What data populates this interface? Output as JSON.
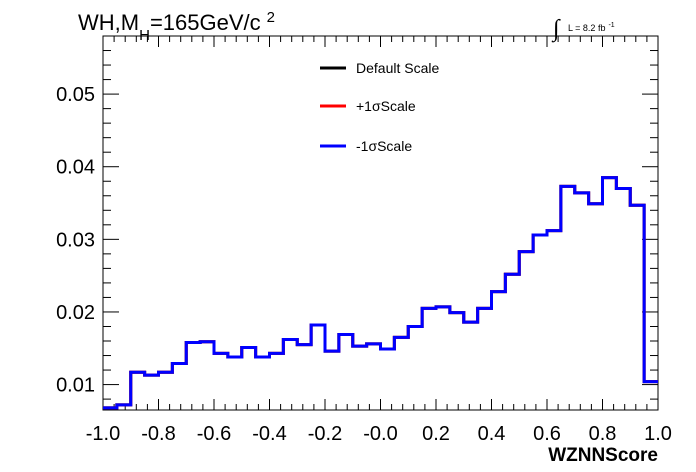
{
  "chart_data": {
    "type": "line",
    "title_main": "WH,M",
    "title_sub": "H",
    "title_rest": "=165GeV/c",
    "title_sup": "2",
    "luminosity_symbol": "∫",
    "luminosity_text": "L = 8.2 fb",
    "luminosity_sup": "-1",
    "xlabel": "WZNNScore",
    "ylabel": "",
    "xlim": [
      -1.0,
      1.0
    ],
    "ylim": [
      0.0065,
      0.058
    ],
    "xticks": [
      -1.0,
      -0.8,
      -0.6,
      -0.4,
      -0.2,
      0.0,
      0.2,
      0.4,
      0.6,
      0.8,
      1.0
    ],
    "xtick_labels": [
      "-1.0",
      "-0.8",
      "-0.6",
      "-0.4",
      "-0.2",
      "-0.0",
      "0.2",
      "0.4",
      "0.6",
      "0.8",
      "1.0"
    ],
    "yticks": [
      0.01,
      0.02,
      0.03,
      0.04,
      0.05
    ],
    "ytick_labels": [
      "0.01",
      "0.02",
      "0.03",
      "0.04",
      "0.05"
    ],
    "legend_position": "top-center",
    "bin_edges": [
      -1.0,
      -0.95,
      -0.9,
      -0.85,
      -0.8,
      -0.75,
      -0.7,
      -0.65,
      -0.6,
      -0.55,
      -0.5,
      -0.45,
      -0.4,
      -0.35,
      -0.3,
      -0.25,
      -0.2,
      -0.15,
      -0.1,
      -0.05,
      0.0,
      0.05,
      0.1,
      0.15,
      0.2,
      0.25,
      0.3,
      0.35,
      0.4,
      0.45,
      0.5,
      0.55,
      0.6,
      0.65,
      0.7,
      0.75,
      0.8,
      0.85,
      0.9,
      0.95,
      1.0
    ],
    "series": [
      {
        "name": "Default Scale",
        "color": "#000000",
        "values": [
          0.0068,
          0.0072,
          0.0117,
          0.0113,
          0.0117,
          0.0129,
          0.0158,
          0.0159,
          0.0143,
          0.0138,
          0.0151,
          0.0138,
          0.0143,
          0.0162,
          0.0155,
          0.0182,
          0.0146,
          0.0169,
          0.0153,
          0.0156,
          0.0149,
          0.0165,
          0.018,
          0.0205,
          0.0207,
          0.0199,
          0.0186,
          0.0205,
          0.0228,
          0.0252,
          0.0283,
          0.0306,
          0.0312,
          0.0373,
          0.0364,
          0.0349,
          0.0385,
          0.037,
          0.0347,
          0.0104
        ]
      },
      {
        "name": "+1σScale",
        "color": "#ff0000",
        "values": [
          0.0068,
          0.0072,
          0.0117,
          0.0113,
          0.0117,
          0.0129,
          0.0158,
          0.0159,
          0.0143,
          0.0138,
          0.0151,
          0.0138,
          0.0143,
          0.0162,
          0.0155,
          0.0182,
          0.0146,
          0.0169,
          0.0153,
          0.0156,
          0.0149,
          0.0165,
          0.018,
          0.0205,
          0.0207,
          0.0199,
          0.0186,
          0.0205,
          0.0228,
          0.0252,
          0.0283,
          0.0306,
          0.0312,
          0.0373,
          0.0364,
          0.0349,
          0.0385,
          0.037,
          0.0347,
          0.0104
        ]
      },
      {
        "name": "-1σScale",
        "color": "#0000ff",
        "values": [
          0.0068,
          0.0072,
          0.0117,
          0.0113,
          0.0117,
          0.0129,
          0.0158,
          0.0159,
          0.0143,
          0.0138,
          0.0151,
          0.0138,
          0.0143,
          0.0162,
          0.0155,
          0.0182,
          0.0146,
          0.0169,
          0.0153,
          0.0156,
          0.0149,
          0.0165,
          0.018,
          0.0205,
          0.0207,
          0.0199,
          0.0186,
          0.0205,
          0.0228,
          0.0252,
          0.0283,
          0.0306,
          0.0312,
          0.0373,
          0.0364,
          0.0349,
          0.0385,
          0.037,
          0.0347,
          0.0104
        ]
      }
    ]
  }
}
